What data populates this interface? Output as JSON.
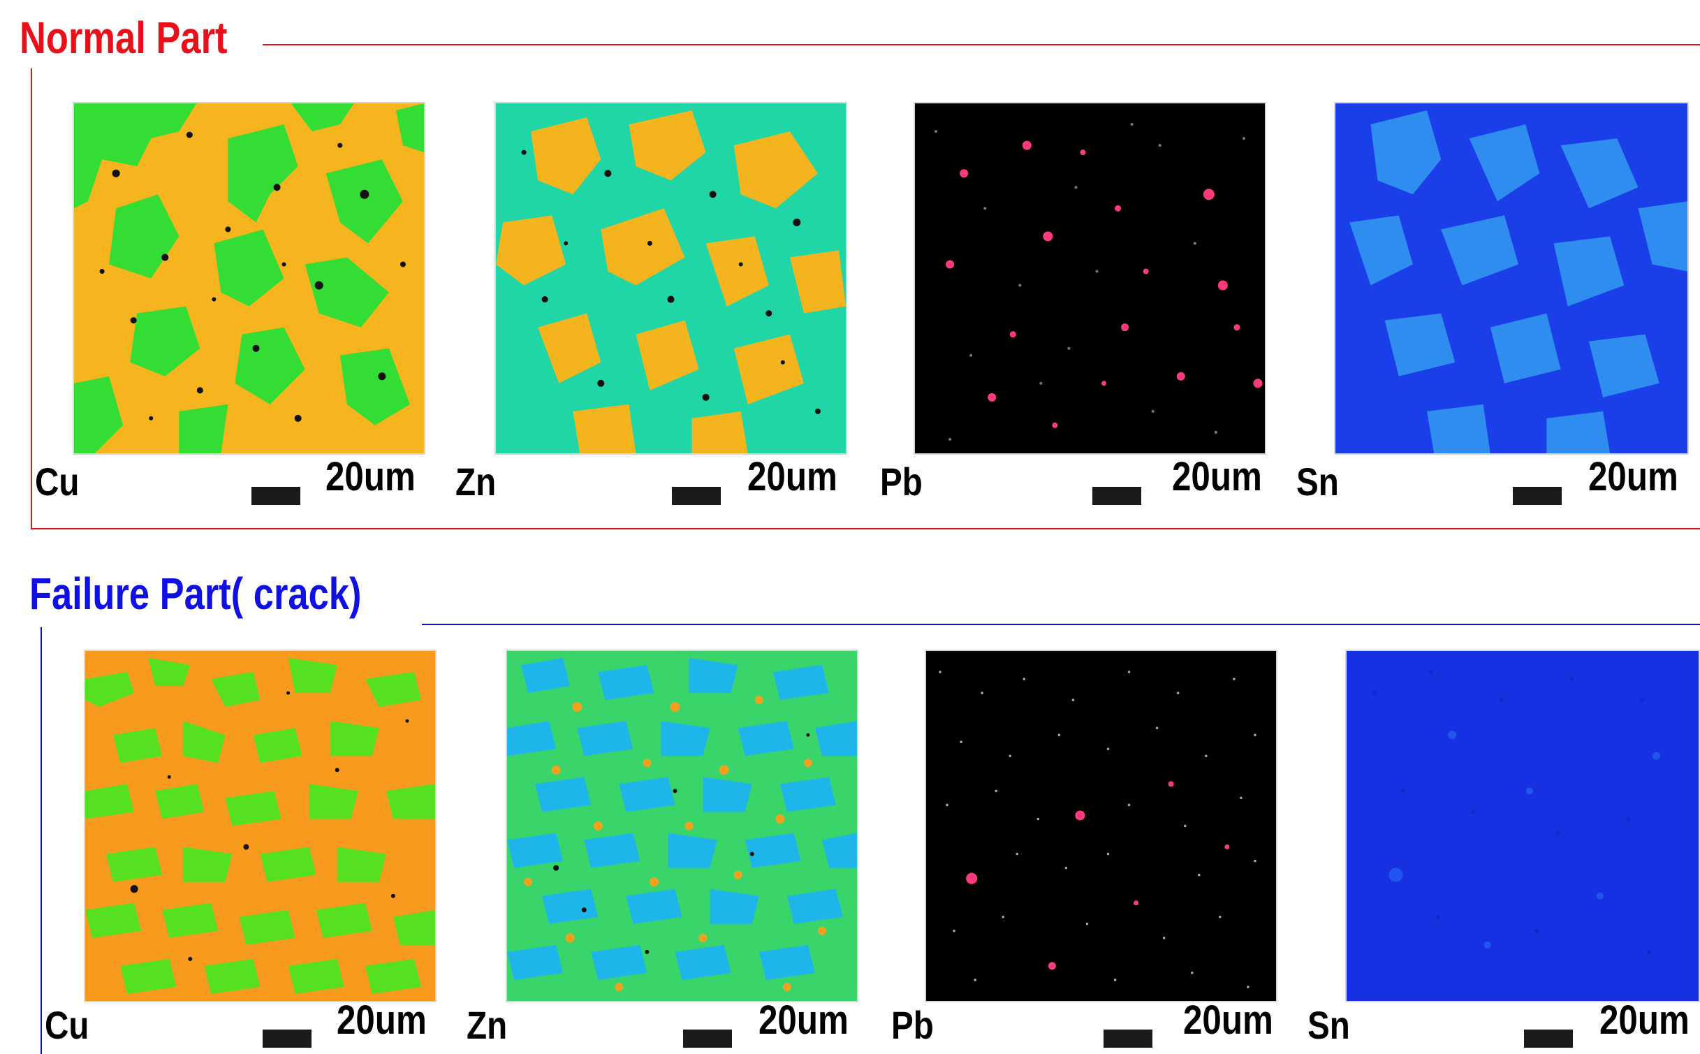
{
  "sections": {
    "normal": {
      "title": "Normal Part",
      "color": "#e8101a",
      "maps": [
        {
          "element": "Cu",
          "scale": "20um",
          "base": "#f6b41e",
          "phase": "#33dd33",
          "dot": "#111111"
        },
        {
          "element": "Zn",
          "scale": "20um",
          "base": "#20d6a6",
          "phase": "#f4b41e",
          "dot": "#111111"
        },
        {
          "element": "Pb",
          "scale": "20um",
          "base": "#000000",
          "phase": "#ff3a78",
          "dot": "#777777"
        },
        {
          "element": "Sn",
          "scale": "20um",
          "base": "#1a3ee8",
          "phase": "#2f8df0",
          "dot": "#1530c8"
        }
      ]
    },
    "failure": {
      "title": "Failure Part( crack)",
      "color": "#1010e0",
      "maps": [
        {
          "element": "Cu",
          "scale": "20um",
          "base": "#f79a1e",
          "phase": "#55e022",
          "dot": "#111111"
        },
        {
          "element": "Zn",
          "scale": "20um",
          "base": "#3ad56a",
          "phase": "#1eb6ea",
          "dot": "#f0a21e"
        },
        {
          "element": "Pb",
          "scale": "20um",
          "base": "#000000",
          "phase": "#ff3a78",
          "dot": "#aaaaaa"
        },
        {
          "element": "Sn",
          "scale": "20um",
          "base": "#1630e2",
          "phase": "#2254ee",
          "dot": "#1228c8"
        }
      ]
    }
  }
}
